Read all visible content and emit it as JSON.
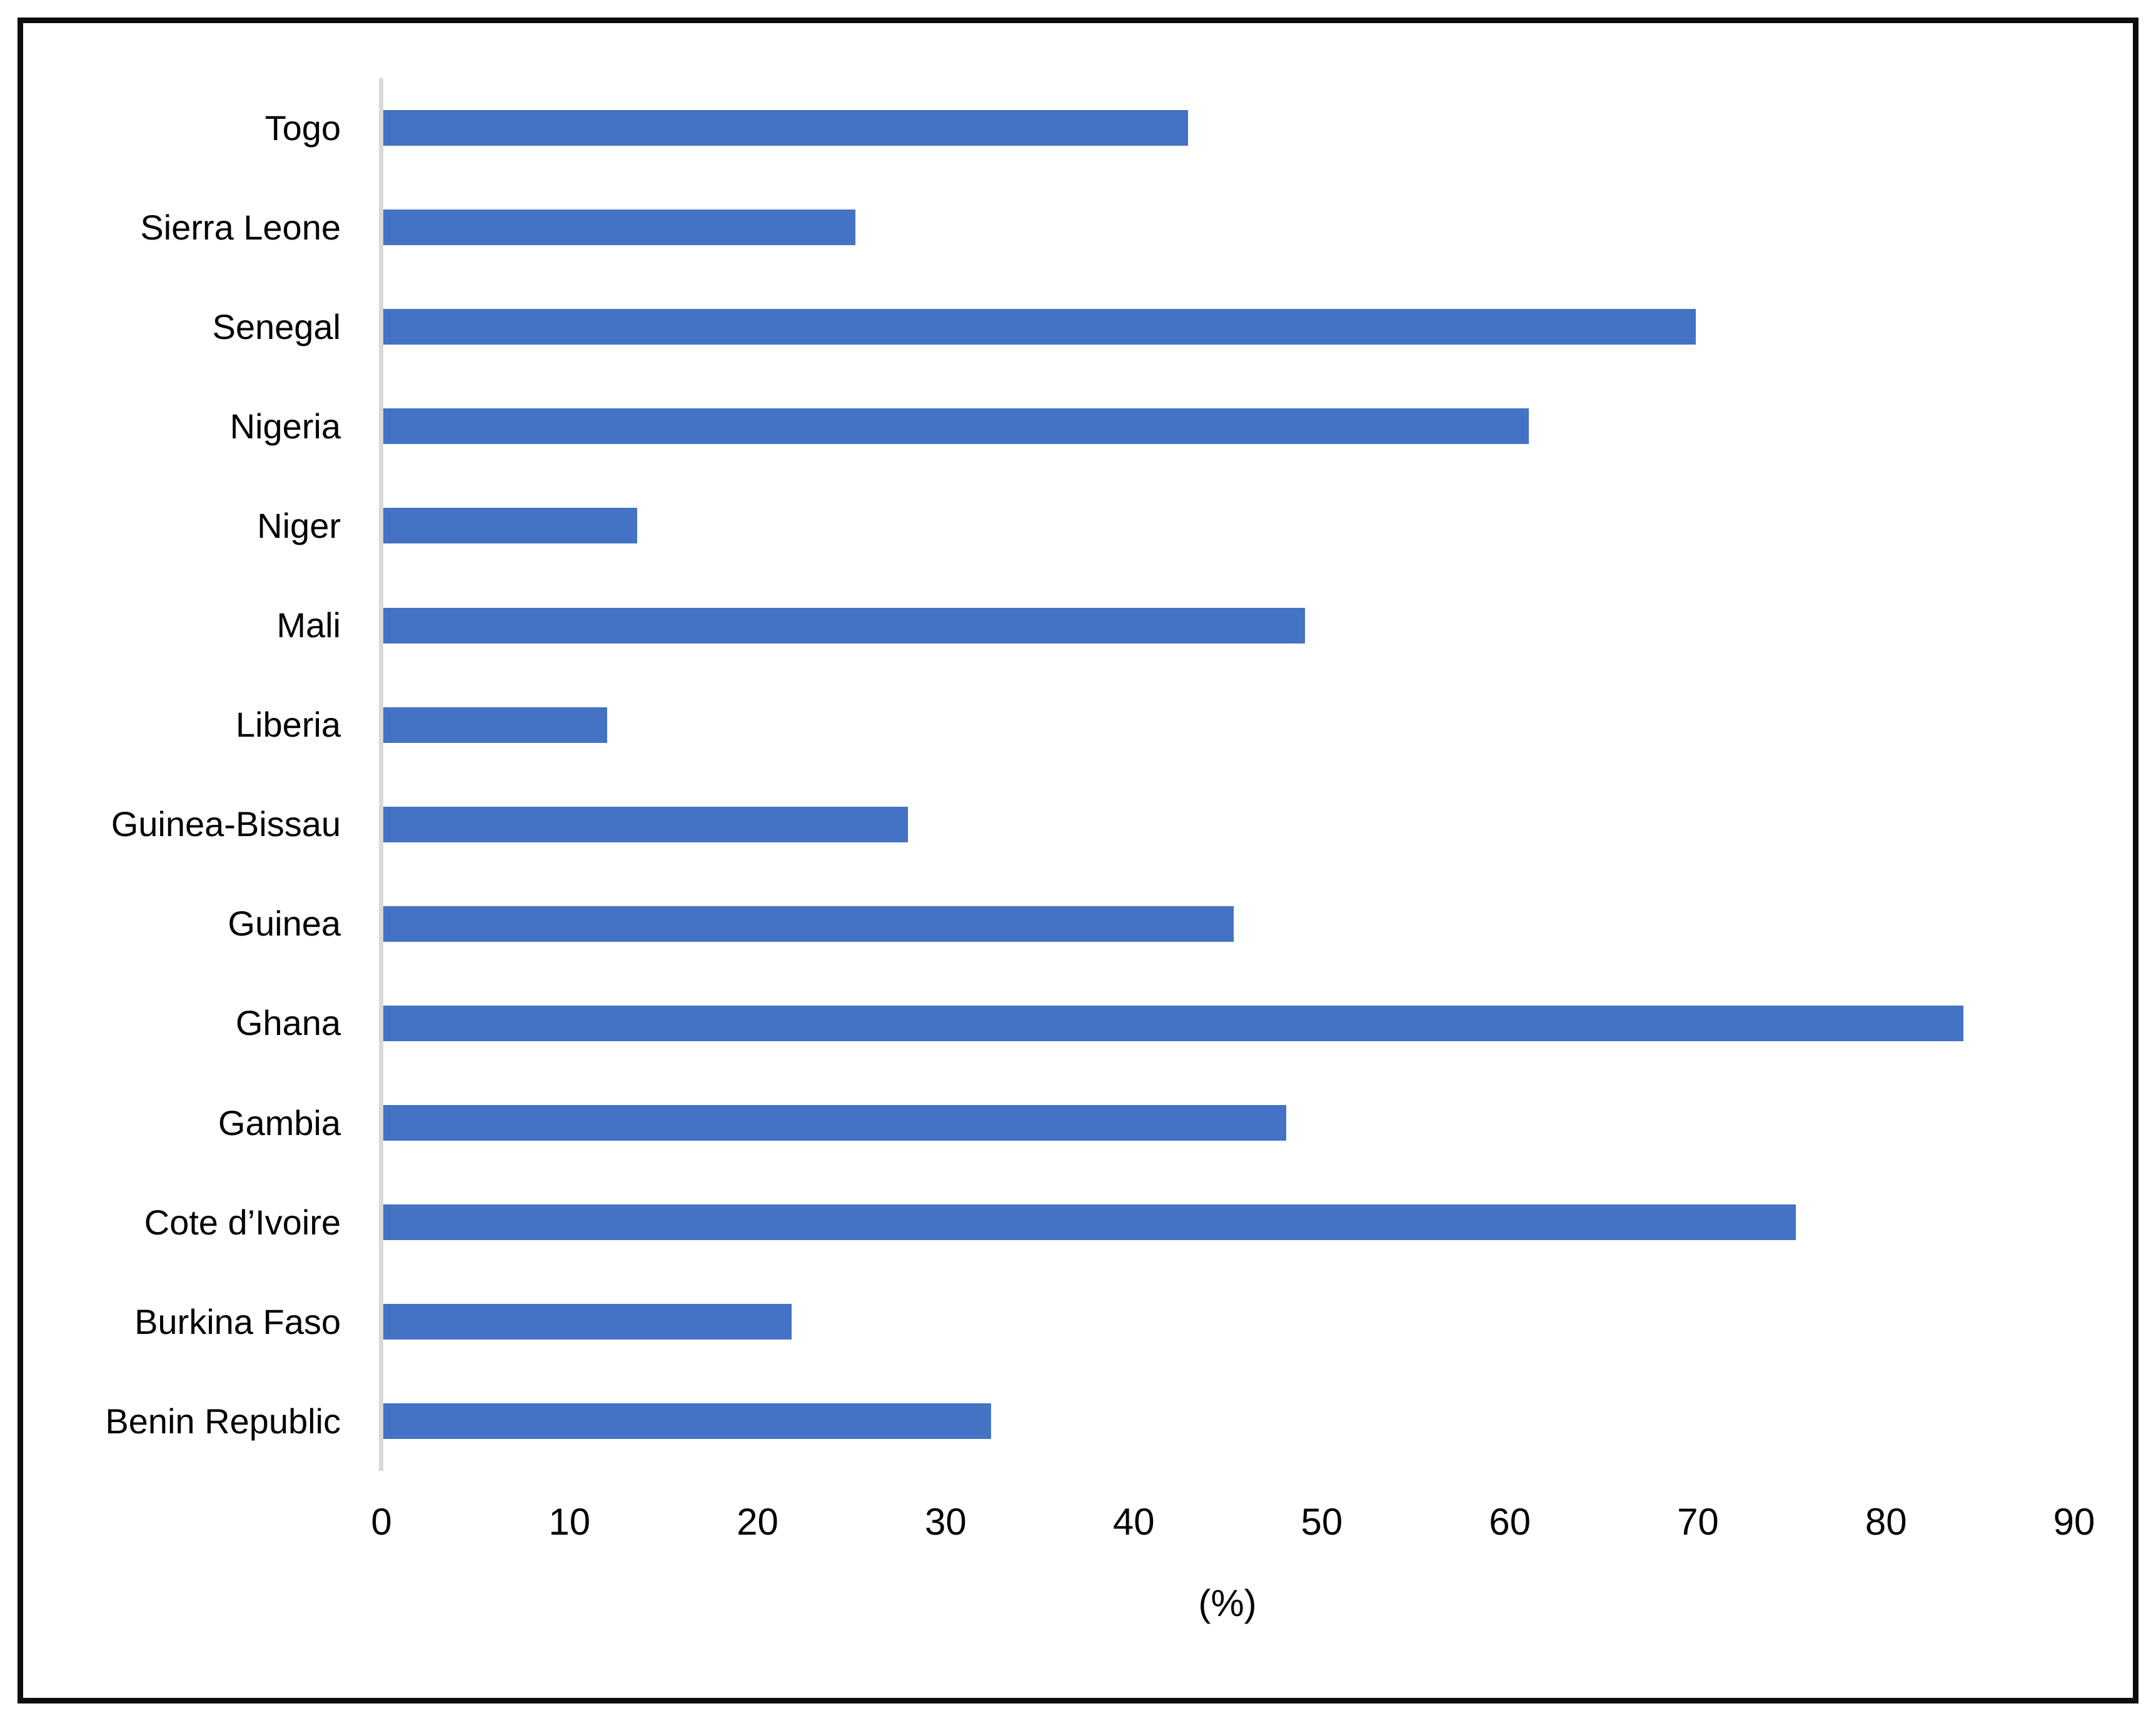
{
  "chart_data": {
    "type": "bar",
    "orientation": "horizontal",
    "title": "",
    "xlabel": "(%)",
    "ylabel": "",
    "xlim": [
      0,
      90
    ],
    "x_ticks": [
      0,
      10,
      20,
      30,
      40,
      50,
      60,
      70,
      80,
      90
    ],
    "grid": false,
    "legend": "none",
    "bar_color": "#4472c4",
    "axis_line_color": "#d9d9d9",
    "frame_border_color": "#0d0d0d",
    "categories_top_to_bottom": [
      "Togo",
      "Sierra Leone",
      "Senegal",
      "Nigeria",
      "Niger",
      "Mali",
      "Liberia",
      "Guinea-Bissau",
      "Guinea",
      "Ghana",
      "Gambia",
      "Cote d’Ivoire",
      "Burkina Faso",
      "Benin Republic"
    ],
    "values": [
      42.8,
      25.1,
      69.8,
      60.9,
      13.5,
      49.0,
      11.9,
      27.9,
      45.2,
      84.0,
      48.0,
      75.1,
      21.7,
      32.3
    ]
  }
}
